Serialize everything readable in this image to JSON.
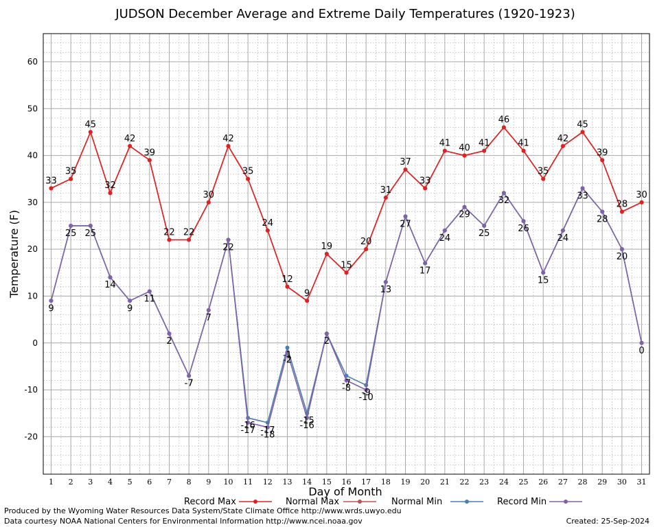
{
  "chart_data": {
    "type": "line",
    "title": "JUDSON December Average and Extreme Daily Temperatures (1920-1923)",
    "xlabel": "Day of Month",
    "ylabel": "Temperature (F)",
    "x": [
      1,
      2,
      3,
      4,
      5,
      6,
      7,
      8,
      9,
      10,
      11,
      12,
      13,
      14,
      15,
      16,
      17,
      18,
      19,
      20,
      21,
      22,
      23,
      24,
      25,
      26,
      27,
      28,
      29,
      30,
      31
    ],
    "xlim": [
      0.6,
      31.4
    ],
    "ylim": [
      -28,
      66
    ],
    "yticks": [
      -20,
      -10,
      0,
      10,
      20,
      30,
      40,
      50,
      60
    ],
    "grid": true,
    "legend_position": "bottom",
    "series": [
      {
        "name": "Record Max",
        "color": "#dd2222",
        "values": [
          33,
          35,
          45,
          32,
          42,
          39,
          22,
          22,
          30,
          42,
          35,
          24,
          12,
          9,
          19,
          15,
          20,
          31,
          37,
          33,
          41,
          40,
          41,
          46,
          41,
          35,
          42,
          45,
          39,
          28,
          30
        ],
        "labels": [
          "33",
          "35",
          "45",
          "32",
          "42",
          "39",
          "22",
          "22",
          "30",
          "42",
          "35",
          "24",
          "12",
          "9",
          "19",
          "15",
          "20",
          "31",
          "37",
          "33",
          "41",
          "40",
          "41",
          "46",
          "41",
          "35",
          "42",
          "45",
          "39",
          "28",
          "30"
        ]
      },
      {
        "name": "Normal Max",
        "color": "#c05050",
        "values": [
          33,
          35,
          45,
          32,
          42,
          39,
          22,
          22,
          30,
          42,
          35,
          24,
          12,
          9,
          19,
          15,
          20,
          31,
          37,
          33,
          41,
          40,
          41,
          46,
          41,
          35,
          42,
          45,
          39,
          28,
          30
        ]
      },
      {
        "name": "Normal Min",
        "color": "#4a7fb0",
        "values": [
          9,
          25,
          25,
          14,
          9,
          11,
          2,
          -7,
          7,
          22,
          -16,
          -17,
          -1,
          -15,
          2,
          -7,
          -9,
          13,
          27,
          17,
          24,
          29,
          25,
          32,
          26,
          15,
          24,
          33,
          28,
          20,
          0
        ],
        "labels": [
          "",
          "",
          "",
          "",
          "",
          "",
          "",
          "-7",
          "",
          "",
          "-16",
          "-17",
          "-1",
          "-15",
          "",
          "-7",
          "-9",
          "",
          "",
          "",
          "",
          "",
          "",
          "",
          "",
          "",
          "",
          "",
          "",
          "",
          ""
        ]
      },
      {
        "name": "Record Min",
        "color": "#8060a8",
        "values": [
          9,
          25,
          25,
          14,
          9,
          11,
          2,
          -7,
          7,
          22,
          -17,
          -18,
          -2,
          -16,
          2,
          -8,
          -10,
          13,
          27,
          17,
          24,
          29,
          25,
          32,
          26,
          15,
          24,
          33,
          28,
          20,
          0
        ],
        "labels": [
          "9",
          "25",
          "25",
          "14",
          "9",
          "11",
          "2",
          "-7",
          "7",
          "22",
          "-17",
          "-18",
          "-2",
          "-16",
          "2",
          "-8",
          "-10",
          "13",
          "27",
          "17",
          "24",
          "29",
          "25",
          "32",
          "26",
          "15",
          "24",
          "33",
          "28",
          "20",
          "0"
        ]
      }
    ]
  },
  "legend": {
    "items": [
      "Record Max",
      "Normal Max",
      "Normal Min",
      "Record Min"
    ]
  },
  "footer": {
    "produced_by": "Produced by the Wyoming Water Resources Data System/State Climate Office http://www.wrds.uwyo.edu",
    "courtesy": "Data courtesy NOAA National Centers for Environmental Information http://www.ncei.noaa.gov",
    "created": "Created:  25-Sep-2024"
  }
}
